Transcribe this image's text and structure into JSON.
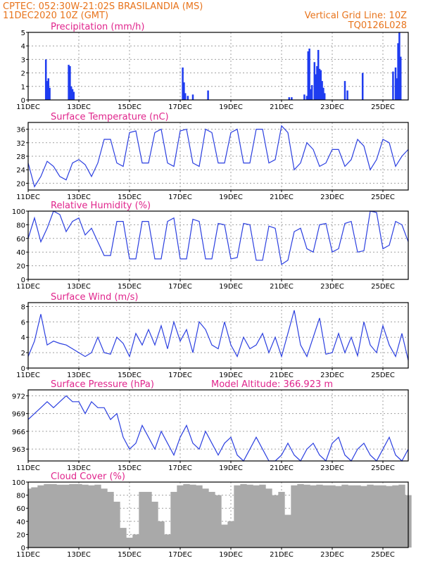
{
  "header": {
    "line1": "CPTEC:   052:30W-21:02S   BRASILANDIA (MS)",
    "line2": "11DEC2020 10Z (GMT)",
    "right1": "Vertical Grid Line: 10Z",
    "right2": "TQ0126L028"
  },
  "colors": {
    "header": "#e8741c",
    "panel_title": "#e0258c",
    "line": "#2b3fe0",
    "bar": "#1f3cf0",
    "cloud": "#a9a9a9",
    "grid": "#a0a0a0"
  },
  "chart_data": [
    {
      "id": "precip",
      "type": "bar",
      "title": "Precipitation  (mm/h)",
      "xlim": [
        0,
        15
      ],
      "ylim": [
        0,
        5
      ],
      "yticks": [
        0,
        1,
        2,
        3,
        4,
        5
      ],
      "xtick_labels": [
        "11DEC",
        "13DEC",
        "15DEC",
        "17DEC",
        "19DEC",
        "21DEC",
        "23DEC",
        "25DEC"
      ],
      "xtick_positions": [
        0,
        2,
        4,
        6,
        8,
        10,
        12,
        14
      ],
      "series": [
        {
          "x": [
            0.7,
            0.75,
            0.8,
            0.85,
            1.6,
            1.65,
            1.7,
            1.75,
            1.8,
            6.1,
            6.15,
            6.2,
            6.3,
            6.5,
            7.1,
            10.3,
            10.4,
            10.9,
            11.0,
            11.05,
            11.1,
            11.15,
            11.2,
            11.3,
            11.35,
            11.4,
            11.45,
            11.5,
            11.55,
            11.6,
            11.65,
            11.7,
            12.5,
            12.6,
            13.2,
            14.4,
            14.5,
            14.55,
            14.6,
            14.65,
            14.7
          ],
          "values": [
            3.0,
            1.4,
            1.6,
            0.9,
            2.6,
            2.5,
            1.0,
            0.8,
            0.6,
            2.4,
            1.3,
            0.5,
            0.3,
            0.4,
            0.7,
            0.2,
            0.2,
            0.4,
            0.3,
            3.6,
            3.8,
            0.8,
            1.1,
            2.8,
            1.9,
            2.5,
            3.7,
            2.3,
            2.2,
            1.4,
            0.9,
            0.5,
            1.4,
            0.7,
            2.0,
            2.1,
            2.4,
            1.6,
            4.2,
            5.0,
            3.2
          ]
        }
      ]
    },
    {
      "id": "temp",
      "type": "line",
      "title": "Surface Temperature (nC)",
      "xlim": [
        0,
        15
      ],
      "ylim": [
        18,
        38
      ],
      "yticks": [
        20,
        24,
        28,
        32,
        36
      ],
      "xtick_labels": [
        "11DEC",
        "13DEC",
        "15DEC",
        "17DEC",
        "19DEC",
        "21DEC",
        "23DEC",
        "25DEC"
      ],
      "xtick_positions": [
        0,
        2,
        4,
        6,
        8,
        10,
        12,
        14
      ],
      "series": [
        {
          "x": [
            0,
            0.25,
            0.5,
            0.75,
            1,
            1.25,
            1.5,
            1.75,
            2,
            2.25,
            2.5,
            2.75,
            3,
            3.25,
            3.5,
            3.75,
            4,
            4.25,
            4.5,
            4.75,
            5,
            5.25,
            5.5,
            5.75,
            6,
            6.25,
            6.5,
            6.75,
            7,
            7.25,
            7.5,
            7.75,
            8,
            8.25,
            8.5,
            8.75,
            9,
            9.25,
            9.5,
            9.75,
            10,
            10.25,
            10.5,
            10.75,
            11,
            11.25,
            11.5,
            11.75,
            12,
            12.25,
            12.5,
            12.75,
            13,
            13.25,
            13.5,
            13.75,
            14,
            14.25,
            14.5,
            14.75,
            15
          ],
          "values": [
            26,
            19,
            22,
            26.5,
            25,
            22,
            21,
            26,
            27,
            25.5,
            22,
            26,
            33,
            33,
            26,
            25,
            35,
            35.5,
            26,
            26,
            35,
            36,
            26,
            25,
            35.5,
            36,
            26,
            25,
            36,
            35,
            26,
            26,
            35,
            36,
            26,
            26,
            36,
            36,
            26,
            27,
            37,
            35,
            24,
            26,
            32,
            30,
            25,
            26,
            30,
            30,
            25,
            27,
            33,
            31,
            24,
            27,
            33,
            32,
            25,
            28,
            30
          ]
        }
      ]
    },
    {
      "id": "rh",
      "type": "line",
      "title": "Relative Humidity (%)",
      "xlim": [
        0,
        15
      ],
      "ylim": [
        0,
        100
      ],
      "yticks": [
        0,
        20,
        40,
        60,
        80,
        100
      ],
      "xtick_labels": [
        "11DEC",
        "13DEC",
        "15DEC",
        "17DEC",
        "19DEC",
        "21DEC",
        "23DEC",
        "25DEC"
      ],
      "xtick_positions": [
        0,
        2,
        4,
        6,
        8,
        10,
        12,
        14
      ],
      "series": [
        {
          "x": [
            0,
            0.25,
            0.5,
            0.75,
            1,
            1.25,
            1.5,
            1.75,
            2,
            2.25,
            2.5,
            2.75,
            3,
            3.25,
            3.5,
            3.75,
            4,
            4.25,
            4.5,
            4.75,
            5,
            5.25,
            5.5,
            5.75,
            6,
            6.25,
            6.5,
            6.75,
            7,
            7.25,
            7.5,
            7.75,
            8,
            8.25,
            8.5,
            8.75,
            9,
            9.25,
            9.5,
            9.75,
            10,
            10.25,
            10.5,
            10.75,
            11,
            11.25,
            11.5,
            11.75,
            12,
            12.25,
            12.5,
            12.75,
            13,
            13.25,
            13.5,
            13.75,
            14,
            14.25,
            14.5,
            14.75,
            15
          ],
          "values": [
            60,
            90,
            55,
            75,
            100,
            95,
            70,
            85,
            90,
            65,
            75,
            55,
            35,
            35,
            85,
            85,
            30,
            30,
            85,
            85,
            30,
            30,
            85,
            90,
            30,
            30,
            88,
            85,
            30,
            30,
            82,
            80,
            30,
            32,
            82,
            80,
            28,
            28,
            78,
            75,
            22,
            28,
            70,
            75,
            45,
            40,
            80,
            82,
            40,
            45,
            82,
            85,
            40,
            42,
            100,
            98,
            45,
            50,
            85,
            80,
            55
          ]
        }
      ]
    },
    {
      "id": "wind",
      "type": "line",
      "title": "Surface Wind (m/s)",
      "xlim": [
        0,
        15
      ],
      "ylim": [
        0,
        8.5
      ],
      "yticks": [
        0,
        2,
        4,
        6,
        8
      ],
      "xtick_labels": [
        "11DEC",
        "13DEC",
        "15DEC",
        "17DEC",
        "19DEC",
        "21DEC",
        "23DEC",
        "25DEC"
      ],
      "xtick_positions": [
        0,
        2,
        4,
        6,
        8,
        10,
        12,
        14
      ],
      "series": [
        {
          "x": [
            0,
            0.25,
            0.5,
            0.75,
            1,
            1.25,
            1.5,
            1.75,
            2,
            2.25,
            2.5,
            2.75,
            3,
            3.25,
            3.5,
            3.75,
            4,
            4.25,
            4.5,
            4.75,
            5,
            5.25,
            5.5,
            5.75,
            6,
            6.25,
            6.5,
            6.75,
            7,
            7.25,
            7.5,
            7.75,
            8,
            8.25,
            8.5,
            8.75,
            9,
            9.25,
            9.5,
            9.75,
            10,
            10.25,
            10.5,
            10.75,
            11,
            11.25,
            11.5,
            11.75,
            12,
            12.25,
            12.5,
            12.75,
            13,
            13.25,
            13.5,
            13.75,
            14,
            14.25,
            14.5,
            14.75,
            15
          ],
          "values": [
            1.5,
            3.5,
            7,
            3,
            3.5,
            3.2,
            3,
            2.5,
            2,
            1.5,
            2,
            4,
            2,
            1.8,
            4,
            3.2,
            1.5,
            4.5,
            3,
            5,
            3,
            5.5,
            2.5,
            6,
            3.5,
            5,
            2,
            6,
            5,
            3,
            2.5,
            6,
            3,
            1.5,
            4,
            2.5,
            3,
            4.5,
            2,
            4,
            1.5,
            4.5,
            7.5,
            3,
            1.5,
            4,
            6.5,
            1.8,
            2,
            4.5,
            2,
            4,
            1.6,
            6,
            3,
            2,
            5.5,
            3,
            1.5,
            4.5,
            1
          ]
        }
      ]
    },
    {
      "id": "pres",
      "type": "line",
      "title": "Surface Pressure (hPa)",
      "subtitle": "Model Altitude: 366.923  m",
      "xlim": [
        0,
        15
      ],
      "ylim": [
        961,
        973
      ],
      "yticks": [
        963,
        966,
        969,
        972
      ],
      "xtick_labels": [
        "11DEC",
        "13DEC",
        "15DEC",
        "17DEC",
        "19DEC",
        "21DEC",
        "23DEC",
        "25DEC"
      ],
      "xtick_positions": [
        0,
        2,
        4,
        6,
        8,
        10,
        12,
        14
      ],
      "series": [
        {
          "x": [
            0,
            0.25,
            0.5,
            0.75,
            1,
            1.25,
            1.5,
            1.75,
            2,
            2.25,
            2.5,
            2.75,
            3,
            3.25,
            3.5,
            3.75,
            4,
            4.25,
            4.5,
            4.75,
            5,
            5.25,
            5.5,
            5.75,
            6,
            6.25,
            6.5,
            6.75,
            7,
            7.25,
            7.5,
            7.75,
            8,
            8.25,
            8.5,
            8.75,
            9,
            9.25,
            9.5,
            9.75,
            10,
            10.25,
            10.5,
            10.75,
            11,
            11.25,
            11.5,
            11.75,
            12,
            12.25,
            12.5,
            12.75,
            13,
            13.25,
            13.5,
            13.75,
            14,
            14.25,
            14.5,
            14.75,
            15
          ],
          "values": [
            968,
            969,
            970,
            971,
            970,
            971,
            972,
            971,
            971,
            969,
            971,
            970,
            970,
            968,
            969,
            965,
            963,
            964,
            967,
            965,
            963,
            966,
            964,
            962,
            965,
            967,
            964,
            963,
            966,
            964,
            962,
            964,
            965,
            962,
            961,
            963,
            965,
            963,
            961,
            961,
            962,
            964,
            962,
            961,
            963,
            964,
            962,
            961,
            964,
            965,
            962,
            961,
            963,
            964,
            962,
            961,
            963,
            965,
            962,
            961,
            963
          ]
        }
      ]
    },
    {
      "id": "cloud",
      "type": "bar",
      "title": "Cloud Cover (%)",
      "xlim": [
        0,
        15
      ],
      "ylim": [
        0,
        100
      ],
      "yticks": [
        0,
        20,
        40,
        60,
        80,
        100
      ],
      "xtick_labels": [
        "11DEC",
        "13DEC",
        "15DEC",
        "17DEC",
        "19DEC",
        "21DEC",
        "23DEC",
        "25DEC"
      ],
      "xtick_positions": [
        0,
        2,
        4,
        6,
        8,
        10,
        12,
        14
      ],
      "series": [
        {
          "x": [
            0,
            0.25,
            0.5,
            0.75,
            1,
            1.25,
            1.5,
            1.75,
            2,
            2.25,
            2.5,
            2.75,
            3,
            3.25,
            3.5,
            3.75,
            4,
            4.25,
            4.5,
            4.75,
            5,
            5.25,
            5.5,
            5.75,
            6,
            6.25,
            6.5,
            6.75,
            7,
            7.25,
            7.5,
            7.75,
            8,
            8.25,
            8.5,
            8.75,
            9,
            9.25,
            9.5,
            9.75,
            10,
            10.25,
            10.5,
            10.75,
            11,
            11.25,
            11.5,
            11.75,
            12,
            12.25,
            12.5,
            12.75,
            13,
            13.25,
            13.5,
            13.75,
            14,
            14.25,
            14.5,
            14.75,
            15
          ],
          "values": [
            90,
            92,
            95,
            97,
            97,
            96,
            96,
            97,
            97,
            96,
            95,
            96,
            90,
            85,
            70,
            30,
            15,
            20,
            85,
            85,
            70,
            40,
            20,
            85,
            95,
            97,
            96,
            95,
            90,
            85,
            80,
            35,
            40,
            95,
            97,
            96,
            95,
            96,
            90,
            80,
            85,
            50,
            95,
            97,
            96,
            95,
            96,
            95,
            95,
            94,
            96,
            95,
            95,
            94,
            96,
            95,
            95,
            94,
            95,
            96,
            80
          ]
        }
      ]
    }
  ]
}
